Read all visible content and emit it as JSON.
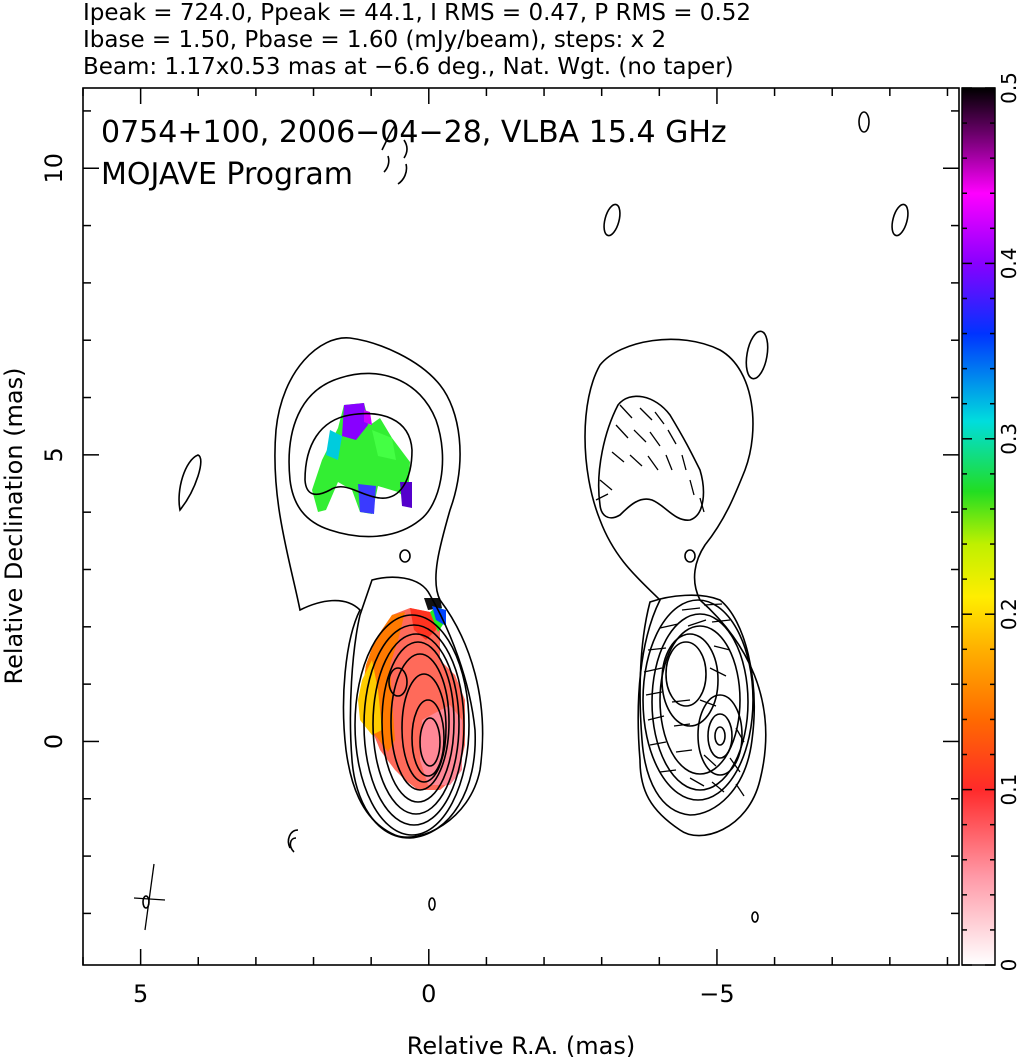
{
  "header": {
    "line1": "Ipeak = 724.0, Ppeak = 44.1, I RMS = 0.47, P RMS = 0.52",
    "line2": "Ibase = 1.50, Pbase = 1.60 (mJy/beam), steps: x 2",
    "line3": "Beam: 1.17x0.53 mas at −6.6 deg., Nat. Wgt. (no taper)"
  },
  "plot_text": {
    "source_line": "0754+100, 2006−04−28, VLBA 15.4 GHz",
    "program_line": "MOJAVE Program"
  },
  "colors": {
    "contour": "#000000",
    "frame": "#000000",
    "colormap": [
      "#ffffff",
      "#ff9aa8",
      "#ff2a2a",
      "#ff8800",
      "#ffee00",
      "#22dd22",
      "#00dddd",
      "#0033ff",
      "#ff00ff",
      "#000000"
    ]
  },
  "chart_data": {
    "type": "heatmap",
    "title": "",
    "xlabel": "Relative R.A. (mas)",
    "ylabel": "Relative Declination (mas)",
    "xlim": [
      6.0,
      -9.2
    ],
    "ylim": [
      -3.9,
      11.4
    ],
    "x_ticks": [
      5,
      0,
      -5
    ],
    "x_tick_labels": [
      "5",
      "0",
      "−5"
    ],
    "y_ticks": [
      0,
      5,
      10
    ],
    "y_tick_labels": [
      "0",
      "5",
      "10"
    ],
    "colorbar": {
      "range": [
        0,
        0.5
      ],
      "ticks": [
        0,
        0.1,
        0.2,
        0.3,
        0.4,
        0.5
      ],
      "tick_labels": [
        "0",
        "0.1",
        "0.2",
        "0.3",
        "0.4",
        "0.5"
      ]
    },
    "panels": [
      {
        "name": "Stokes I contours with fractional polarization color",
        "x_offset_mas": 0
      },
      {
        "name": "Stokes I contours with EVPA vectors",
        "x_offset_mas": -5
      }
    ],
    "core_position_mas": [
      0,
      0
    ],
    "grid": false
  }
}
